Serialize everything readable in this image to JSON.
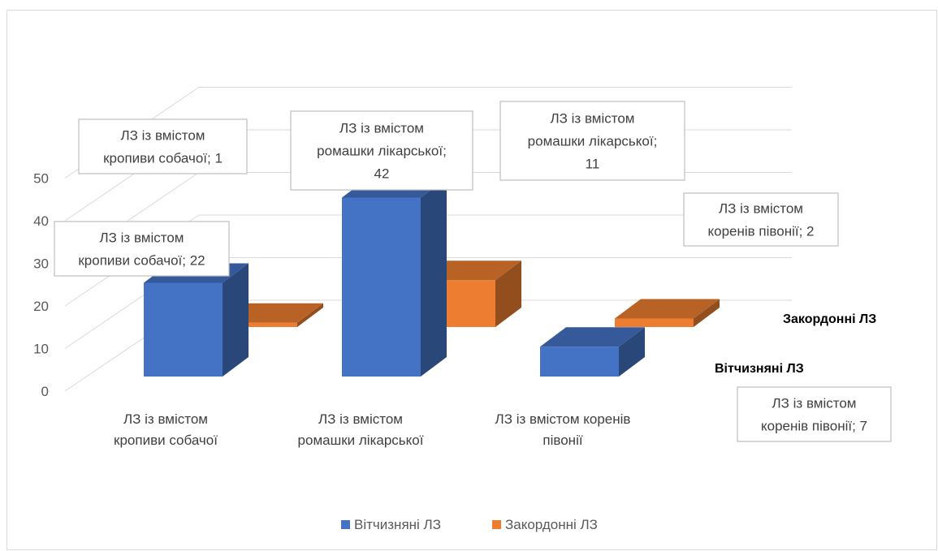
{
  "chart_data": {
    "type": "bar",
    "style": "3d-clustered-column",
    "categories": [
      "ЛЗ із вмістом кропиви собачої",
      "ЛЗ із вмістом ромашки лікарської",
      "ЛЗ із вмістом коренів півонії"
    ],
    "series": [
      {
        "name": "Вітчизняні ЛЗ",
        "values": [
          22,
          42,
          7
        ],
        "color": "#4472C4"
      },
      {
        "name": "Закордонні ЛЗ",
        "values": [
          1,
          11,
          2
        ],
        "color": "#ED7D31"
      }
    ],
    "ylim": [
      0,
      50
    ],
    "yticks": [
      "0",
      "10",
      "20",
      "30",
      "40",
      "50"
    ],
    "grid": true,
    "legend_position": "bottom",
    "data_labels": {
      "s0c0": "ЛЗ із вмістом кропиви собачої; 22",
      "s0c1": "ЛЗ із вмістом ромашки лікарської; 42",
      "s0c2": "ЛЗ із вмістом коренів півонії; 7",
      "s1c0": "ЛЗ із вмістом кропиви собачої; 1",
      "s1c1": "ЛЗ із вмістом ромашки лікарської; 11",
      "s1c2": "ЛЗ із вмістом коренів півонії; 2"
    }
  }
}
